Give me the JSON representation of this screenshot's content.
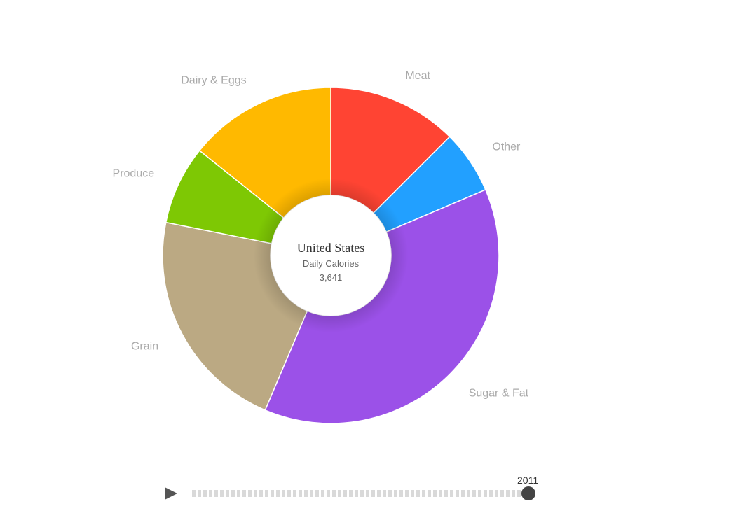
{
  "chart_data": {
    "type": "pie",
    "donut": true,
    "center": {
      "title": "United States",
      "subtitle": "Daily Calories",
      "value": "3,641"
    },
    "slices": [
      {
        "label": "Meat",
        "value": 455,
        "color": "#ff4433"
      },
      {
        "label": "Other",
        "value": 222,
        "color": "#22a0ff"
      },
      {
        "label": "Sugar & Fat",
        "value": 1376,
        "color": "#9b51e8"
      },
      {
        "label": "Grain",
        "value": 793,
        "color": "#bba983"
      },
      {
        "label": "Produce",
        "value": 276,
        "color": "#7ec804"
      },
      {
        "label": "Dairy & Eggs",
        "value": 519,
        "color": "#ffb900"
      }
    ]
  },
  "player": {
    "year": "2011",
    "play_icon": "play-icon"
  }
}
